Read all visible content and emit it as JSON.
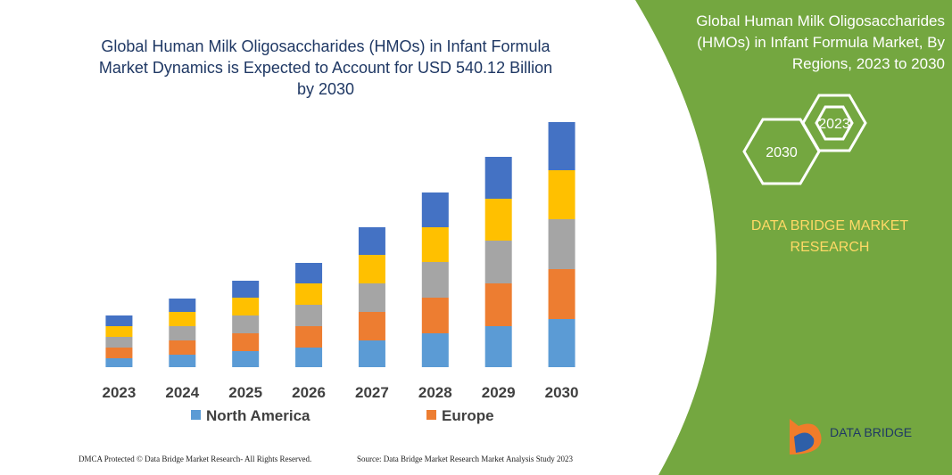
{
  "chart_data": {
    "type": "stacked-bar",
    "title": "Global Human Milk Oligosaccharides (HMOs) in Infant Formula Market Dynamics is Expected to Account for USD 540.12 Billion by 2030",
    "categories": [
      "2023",
      "2024",
      "2025",
      "2026",
      "2027",
      "2028",
      "2029",
      "2030"
    ],
    "series": [
      {
        "name": "North America",
        "color": "#5b9bd5",
        "values": [
          10,
          14,
          18,
          22,
          30,
          38,
          46,
          54
        ]
      },
      {
        "name": "Europe",
        "color": "#ed7d31",
        "values": [
          12,
          16,
          20,
          24,
          32,
          40,
          48,
          56
        ]
      },
      {
        "color": "#a5a5a5",
        "values": [
          12,
          16,
          20,
          24,
          32,
          40,
          48,
          56
        ]
      },
      {
        "color": "#ffc000",
        "values": [
          12,
          16,
          20,
          24,
          32,
          39,
          47,
          55
        ]
      },
      {
        "color": "#4472c4",
        "values": [
          12,
          15,
          19,
          23,
          31,
          39,
          47,
          54
        ]
      }
    ],
    "legend": "bottom"
  },
  "panel": {
    "title": "Global Human Milk Oligosaccharides (HMOs) in Infant Formula Market, By Regions, 2023 to 2030",
    "hex_labels": [
      "2023",
      "2030"
    ],
    "brand": "DATA BRIDGE MARKET RESEARCH"
  },
  "footer": {
    "left": "DMCA Protected © Data Bridge Market Research- All Rights Reserved.",
    "right": "Source: Data Bridge Market Research Market Analysis Study 2023"
  },
  "logo": "DATA BRIDGE"
}
